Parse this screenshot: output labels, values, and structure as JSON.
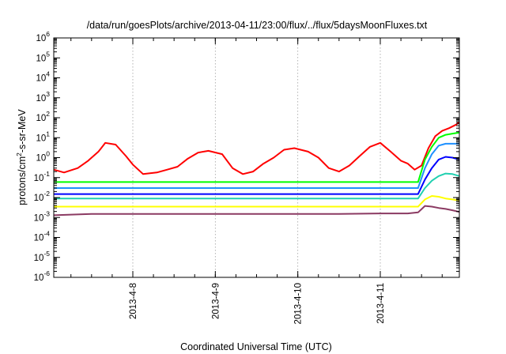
{
  "chart_data": {
    "type": "line",
    "title": "/data/run/goesPlots/archive/2013-04-11/23:00/flux/../flux/5daysMoonFluxes.txt",
    "xlabel": "Coordinated Universal Time (UTC)",
    "ylabel": {
      "base": "protons/cm",
      "sup": "2",
      "rest": "-s-sr-MeV"
    },
    "y_scale": "log",
    "ylim": [
      1e-06,
      1000000.0
    ],
    "y_ticks": [
      {
        "value": 1e-06,
        "exp": "-6"
      },
      {
        "value": 1e-05,
        "exp": "-5"
      },
      {
        "value": 0.0001,
        "exp": "-4"
      },
      {
        "value": 0.001,
        "exp": "-3"
      },
      {
        "value": 0.01,
        "exp": "-2"
      },
      {
        "value": 0.1,
        "exp": "-1"
      },
      {
        "value": 1,
        "exp": "0"
      },
      {
        "value": 10,
        "exp": "1"
      },
      {
        "value": 100,
        "exp": "2"
      },
      {
        "value": 1000,
        "exp": "3"
      },
      {
        "value": 10000,
        "exp": "4"
      },
      {
        "value": 100000,
        "exp": "5"
      },
      {
        "value": 1000000,
        "exp": "6"
      }
    ],
    "xlim": [
      "2013-04-07 01:00",
      "2013-04-11 23:00"
    ],
    "x_ticks": [
      "2013-4-8",
      "2013-4-9",
      "2013-4-10",
      "2013-4-11"
    ],
    "grid": true,
    "legend": "none",
    "series": [
      {
        "color": "#ff0000",
        "x": [
          "2013-04-07 01:00",
          "2013-04-07 04:00",
          "2013-04-07 08:00",
          "2013-04-07 11:00",
          "2013-04-07 14:00",
          "2013-04-07 16:00",
          "2013-04-07 19:00",
          "2013-04-07 22:00",
          "2013-04-08 00:00",
          "2013-04-08 03:00",
          "2013-04-08 07:00",
          "2013-04-08 10:00",
          "2013-04-08 13:00",
          "2013-04-08 16:00",
          "2013-04-08 19:00",
          "2013-04-08 22:00",
          "2013-04-09 02:00",
          "2013-04-09 05:00",
          "2013-04-09 08:00",
          "2013-04-09 11:00",
          "2013-04-09 14:00",
          "2013-04-09 17:00",
          "2013-04-09 20:00",
          "2013-04-09 23:00",
          "2013-04-10 03:00",
          "2013-04-10 06:00",
          "2013-04-10 09:00",
          "2013-04-10 12:00",
          "2013-04-10 15:00",
          "2013-04-10 18:00",
          "2013-04-10 21:00",
          "2013-04-11 00:00",
          "2013-04-11 03:00",
          "2013-04-11 06:00",
          "2013-04-11 08:00",
          "2013-04-11 10:00",
          "2013-04-11 12:00",
          "2013-04-11 14:00",
          "2013-04-11 16:00",
          "2013-04-11 18:00",
          "2013-04-11 20:00",
          "2013-04-11 22:00",
          "2013-04-11 23:00"
        ],
        "y": [
          0.25,
          0.18,
          0.3,
          0.7,
          2.0,
          5.5,
          4.5,
          1.2,
          0.45,
          0.15,
          0.18,
          0.25,
          0.35,
          0.9,
          1.8,
          2.2,
          1.5,
          0.3,
          0.15,
          0.2,
          0.5,
          1.0,
          2.5,
          3.0,
          2.0,
          1.0,
          0.3,
          0.2,
          0.4,
          1.2,
          3.5,
          5.5,
          2.0,
          0.7,
          0.5,
          0.25,
          0.4,
          3.0,
          12,
          22,
          30,
          45,
          60
        ]
      },
      {
        "color": "#00ff00",
        "x": [
          "2013-04-07 01:00",
          "2013-04-07 12:00",
          "2013-04-08 00:00",
          "2013-04-08 12:00",
          "2013-04-09 00:00",
          "2013-04-09 12:00",
          "2013-04-10 00:00",
          "2013-04-10 12:00",
          "2013-04-11 00:00",
          "2013-04-11 08:00",
          "2013-04-11 11:00",
          "2013-04-11 13:00",
          "2013-04-11 15:00",
          "2013-04-11 17:00",
          "2013-04-11 19:00",
          "2013-04-11 21:00",
          "2013-04-11 23:00"
        ],
        "y": [
          0.06,
          0.06,
          0.06,
          0.06,
          0.06,
          0.06,
          0.06,
          0.06,
          0.06,
          0.06,
          0.06,
          0.8,
          3.5,
          10,
          14,
          16,
          18
        ]
      },
      {
        "color": "#1e90ff",
        "x": [
          "2013-04-07 01:00",
          "2013-04-07 12:00",
          "2013-04-08 00:00",
          "2013-04-08 12:00",
          "2013-04-09 00:00",
          "2013-04-09 12:00",
          "2013-04-10 00:00",
          "2013-04-10 12:00",
          "2013-04-11 00:00",
          "2013-04-11 08:00",
          "2013-04-11 11:00",
          "2013-04-11 13:00",
          "2013-04-11 15:00",
          "2013-04-11 17:00",
          "2013-04-11 19:00",
          "2013-04-11 21:00",
          "2013-04-11 23:00"
        ],
        "y": [
          0.03,
          0.03,
          0.03,
          0.03,
          0.03,
          0.03,
          0.03,
          0.03,
          0.03,
          0.03,
          0.03,
          0.3,
          1.5,
          4,
          5,
          5,
          5
        ]
      },
      {
        "color": "#0000ff",
        "x": [
          "2013-04-07 01:00",
          "2013-04-07 12:00",
          "2013-04-08 00:00",
          "2013-04-08 12:00",
          "2013-04-09 00:00",
          "2013-04-09 12:00",
          "2013-04-10 00:00",
          "2013-04-10 12:00",
          "2013-04-11 00:00",
          "2013-04-11 08:00",
          "2013-04-11 11:00",
          "2013-04-11 13:00",
          "2013-04-11 15:00",
          "2013-04-11 17:00",
          "2013-04-11 19:00",
          "2013-04-11 21:00",
          "2013-04-11 23:00"
        ],
        "y": [
          0.015,
          0.015,
          0.015,
          0.015,
          0.015,
          0.015,
          0.015,
          0.015,
          0.015,
          0.015,
          0.015,
          0.08,
          0.3,
          0.8,
          1.1,
          1.0,
          0.8
        ]
      },
      {
        "color": "#20d0b0",
        "x": [
          "2013-04-07 01:00",
          "2013-04-07 12:00",
          "2013-04-08 00:00",
          "2013-04-08 12:00",
          "2013-04-09 00:00",
          "2013-04-09 12:00",
          "2013-04-10 00:00",
          "2013-04-10 12:00",
          "2013-04-11 00:00",
          "2013-04-11 08:00",
          "2013-04-11 11:00",
          "2013-04-11 13:00",
          "2013-04-11 15:00",
          "2013-04-11 17:00",
          "2013-04-11 19:00",
          "2013-04-11 21:00",
          "2013-04-11 23:00"
        ],
        "y": [
          0.009,
          0.009,
          0.009,
          0.009,
          0.009,
          0.009,
          0.009,
          0.009,
          0.009,
          0.009,
          0.009,
          0.03,
          0.07,
          0.12,
          0.16,
          0.15,
          0.12
        ]
      },
      {
        "color": "#ffff00",
        "x": [
          "2013-04-07 01:00",
          "2013-04-07 12:00",
          "2013-04-08 00:00",
          "2013-04-08 12:00",
          "2013-04-09 00:00",
          "2013-04-09 12:00",
          "2013-04-10 00:00",
          "2013-04-10 12:00",
          "2013-04-11 00:00",
          "2013-04-11 08:00",
          "2013-04-11 11:00",
          "2013-04-11 13:00",
          "2013-04-11 15:00",
          "2013-04-11 17:00",
          "2013-04-11 19:00",
          "2013-04-11 21:00",
          "2013-04-11 23:00"
        ],
        "y": [
          0.0035,
          0.0035,
          0.0035,
          0.0035,
          0.0035,
          0.0035,
          0.0035,
          0.0035,
          0.0035,
          0.0035,
          0.0035,
          0.008,
          0.012,
          0.011,
          0.009,
          0.008,
          0.007
        ]
      },
      {
        "color": "#8b3a62",
        "x": [
          "2013-04-07 01:00",
          "2013-04-07 12:00",
          "2013-04-08 00:00",
          "2013-04-08 12:00",
          "2013-04-09 00:00",
          "2013-04-09 12:00",
          "2013-04-10 00:00",
          "2013-04-10 12:00",
          "2013-04-11 00:00",
          "2013-04-11 08:00",
          "2013-04-11 11:00",
          "2013-04-11 13:00",
          "2013-04-11 15:00",
          "2013-04-11 17:00",
          "2013-04-11 19:00",
          "2013-04-11 21:00",
          "2013-04-11 23:00"
        ],
        "y": [
          0.0013,
          0.0015,
          0.0015,
          0.0015,
          0.0015,
          0.0015,
          0.0015,
          0.0015,
          0.0016,
          0.0016,
          0.0018,
          0.0038,
          0.0035,
          0.003,
          0.0027,
          0.0023,
          0.0019
        ]
      }
    ]
  }
}
